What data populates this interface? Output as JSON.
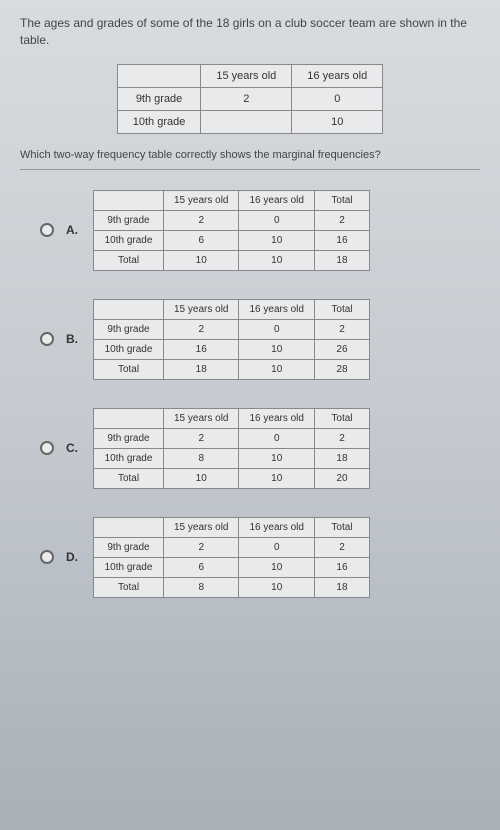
{
  "question": {
    "intro": "The ages and grades of some of the 18 girls on a club soccer team are shown in the table.",
    "prompt": "Which two-way frequency table correctly shows the marginal frequencies?"
  },
  "main_table": {
    "col1": "15 years old",
    "col2": "16 years old",
    "row1_label": "9th grade",
    "row1_v1": "2",
    "row1_v2": "0",
    "row2_label": "10th grade",
    "row2_v1": "",
    "row2_v2": "10"
  },
  "col_headers": {
    "c1": "15 years old",
    "c2": "16 years old",
    "c3": "Total"
  },
  "row_headers": {
    "r1": "9th grade",
    "r2": "10th grade",
    "r3": "Total"
  },
  "options": {
    "A": {
      "label": "A.",
      "r1": [
        "2",
        "0",
        "2"
      ],
      "r2": [
        "6",
        "10",
        "16"
      ],
      "r3": [
        "10",
        "10",
        "18"
      ]
    },
    "B": {
      "label": "B.",
      "r1": [
        "2",
        "0",
        "2"
      ],
      "r2": [
        "16",
        "10",
        "26"
      ],
      "r3": [
        "18",
        "10",
        "28"
      ]
    },
    "C": {
      "label": "C.",
      "r1": [
        "2",
        "0",
        "2"
      ],
      "r2": [
        "8",
        "10",
        "18"
      ],
      "r3": [
        "10",
        "10",
        "20"
      ]
    },
    "D": {
      "label": "D.",
      "r1": [
        "2",
        "0",
        "2"
      ],
      "r2": [
        "6",
        "10",
        "16"
      ],
      "r3": [
        "8",
        "10",
        "18"
      ]
    }
  },
  "colors": {
    "border": "#888888",
    "text": "#444444",
    "radio_border": "#666666"
  }
}
